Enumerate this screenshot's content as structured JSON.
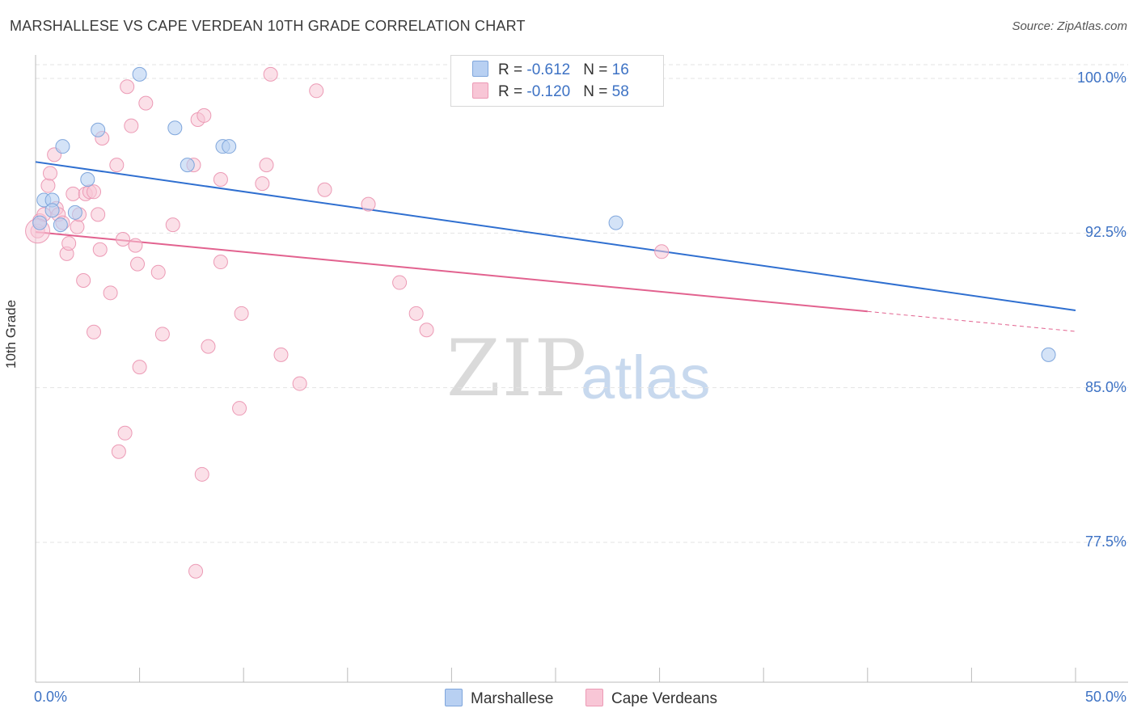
{
  "title": "MARSHALLESE VS CAPE VERDEAN 10TH GRADE CORRELATION CHART",
  "source": "Source: ZipAtlas.com",
  "watermark": {
    "zip": "ZIP",
    "atlas": "atlas"
  },
  "legend": {
    "rows": [
      {
        "r_label": "R = ",
        "r_value": "-0.612",
        "n_label": "N = ",
        "n_value": "16"
      },
      {
        "r_label": "R = ",
        "r_value": "-0.120",
        "n_label": "N = ",
        "n_value": "58"
      }
    ],
    "series_names": [
      "Marshallese",
      "Cape Verdeans"
    ]
  },
  "colors": {
    "blue_fill": "#b8d0f2",
    "blue_stroke": "#7fa6dc",
    "blue_line": "#2f6fd0",
    "pink_fill": "#f8c6d6",
    "pink_stroke": "#ec9ab5",
    "pink_line": "#e2628f",
    "axis_label": "#3d72c4",
    "grid": "#e3e3e3"
  },
  "chart_data": {
    "type": "scatter",
    "title": "MARSHALLESE VS CAPE VERDEAN 10TH GRADE CORRELATION CHART",
    "xlabel": "",
    "ylabel": "10th Grade",
    "xlim": [
      0,
      50
    ],
    "ylim": [
      70.0,
      101.5
    ],
    "x_tick_labels": [
      {
        "value": 0,
        "label": "0.0%"
      },
      {
        "value": 50,
        "label": "50.0%"
      }
    ],
    "x_minor_ticks": [
      0,
      5,
      10,
      15,
      20,
      25,
      30,
      35,
      40,
      45,
      50
    ],
    "y_ticks": [
      {
        "value": 100.0,
        "label": "100.0%"
      },
      {
        "value": 92.5,
        "label": "92.5%"
      },
      {
        "value": 85.0,
        "label": "85.0%"
      },
      {
        "value": 77.5,
        "label": "77.5%"
      }
    ],
    "legend_position": "top-center",
    "series": [
      {
        "name": "Marshallese",
        "color": "#b8d0f2",
        "r": -0.612,
        "n": 16,
        "points": [
          [
            5.0,
            100.2
          ],
          [
            0.4,
            94.1
          ],
          [
            0.8,
            94.1
          ],
          [
            0.8,
            93.6
          ],
          [
            1.2,
            92.9
          ],
          [
            1.3,
            96.7
          ],
          [
            2.5,
            95.1
          ],
          [
            3.0,
            97.5
          ],
          [
            1.9,
            93.5
          ],
          [
            6.7,
            97.6
          ],
          [
            7.3,
            95.8
          ],
          [
            9.0,
            96.7
          ],
          [
            9.3,
            96.7
          ],
          [
            27.9,
            93.0
          ],
          [
            48.7,
            86.6
          ],
          [
            0.2,
            93.0
          ]
        ],
        "trend": {
          "x_start": 0,
          "y_start": 95.95,
          "x_end": 50,
          "y_end": 88.75
        }
      },
      {
        "name": "Cape Verdeans",
        "color": "#f8c6d6",
        "r": -0.12,
        "n": 58,
        "points": [
          [
            0.1,
            92.6
          ],
          [
            0.2,
            93.1
          ],
          [
            0.4,
            93.4
          ],
          [
            0.6,
            94.8
          ],
          [
            0.7,
            95.4
          ],
          [
            0.9,
            96.3
          ],
          [
            1.0,
            93.7
          ],
          [
            1.1,
            93.4
          ],
          [
            1.3,
            93.0
          ],
          [
            1.5,
            91.5
          ],
          [
            1.6,
            92.0
          ],
          [
            1.8,
            94.4
          ],
          [
            2.0,
            92.8
          ],
          [
            2.1,
            93.4
          ],
          [
            2.3,
            90.2
          ],
          [
            2.4,
            94.4
          ],
          [
            2.6,
            94.5
          ],
          [
            2.8,
            94.5
          ],
          [
            2.8,
            87.7
          ],
          [
            3.0,
            93.4
          ],
          [
            3.1,
            91.7
          ],
          [
            3.2,
            97.1
          ],
          [
            3.6,
            89.6
          ],
          [
            3.9,
            95.8
          ],
          [
            4.0,
            81.9
          ],
          [
            4.2,
            92.2
          ],
          [
            4.3,
            82.8
          ],
          [
            4.4,
            99.6
          ],
          [
            4.6,
            97.7
          ],
          [
            4.8,
            91.9
          ],
          [
            4.9,
            91.0
          ],
          [
            5.0,
            86.0
          ],
          [
            5.3,
            98.8
          ],
          [
            5.9,
            90.6
          ],
          [
            6.1,
            87.6
          ],
          [
            6.6,
            92.9
          ],
          [
            7.6,
            95.8
          ],
          [
            7.7,
            76.1
          ],
          [
            7.8,
            98.0
          ],
          [
            8.0,
            80.8
          ],
          [
            8.1,
            98.2
          ],
          [
            8.3,
            87.0
          ],
          [
            8.9,
            91.1
          ],
          [
            8.9,
            95.1
          ],
          [
            9.8,
            84.0
          ],
          [
            9.9,
            88.6
          ],
          [
            10.9,
            94.9
          ],
          [
            11.1,
            95.8
          ],
          [
            11.3,
            100.2
          ],
          [
            11.8,
            86.6
          ],
          [
            12.7,
            85.2
          ],
          [
            13.5,
            99.4
          ],
          [
            13.9,
            94.6
          ],
          [
            16.0,
            93.9
          ],
          [
            17.5,
            90.1
          ],
          [
            18.3,
            88.6
          ],
          [
            18.8,
            87.8
          ],
          [
            30.1,
            91.6
          ]
        ],
        "trend": {
          "x_start": 0,
          "y_start": 92.55,
          "x_end": 40,
          "y_end": 88.7
        },
        "trend_dashed_extension": {
          "x_start": 40,
          "y_start": 88.7,
          "x_end": 50,
          "y_end": 87.73
        }
      }
    ]
  }
}
